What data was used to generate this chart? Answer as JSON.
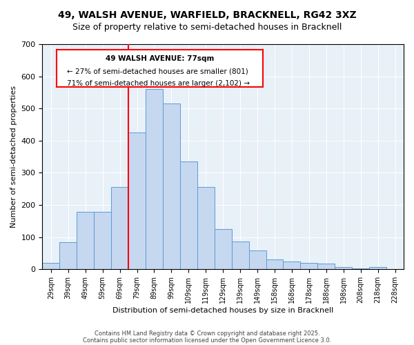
{
  "title": "49, WALSH AVENUE, WARFIELD, BRACKNELL, RG42 3XZ",
  "subtitle": "Size of property relative to semi-detached houses in Bracknell",
  "xlabel": "Distribution of semi-detached houses by size in Bracknell",
  "ylabel": "Number of semi-detached properties",
  "bin_labels": [
    "29sqm",
    "39sqm",
    "49sqm",
    "59sqm",
    "69sqm",
    "79sqm",
    "89sqm",
    "99sqm",
    "109sqm",
    "119sqm",
    "129sqm",
    "139sqm",
    "149sqm",
    "158sqm",
    "168sqm",
    "178sqm",
    "188sqm",
    "198sqm",
    "208sqm",
    "218sqm",
    "228sqm"
  ],
  "bar_values": [
    20,
    85,
    178,
    178,
    255,
    425,
    560,
    515,
    335,
    255,
    125,
    87,
    58,
    30,
    25,
    20,
    18,
    7,
    3,
    7,
    0
  ],
  "bar_color": "#c5d8f0",
  "bar_edge_color": "#5b9bd5",
  "property_size": 77,
  "vline_x": 4.5,
  "annotation_title": "49 WALSH AVENUE: 77sqm",
  "annotation_line1": "← 27% of semi-detached houses are smaller (801)",
  "annotation_line2": "71% of semi-detached houses are larger (2,102) →",
  "footer1": "Contains HM Land Registry data © Crown copyright and database right 2025.",
  "footer2": "Contains public sector information licensed under the Open Government Licence 3.0.",
  "ylim": [
    0,
    700
  ],
  "yticks": [
    0,
    100,
    200,
    300,
    400,
    500,
    600,
    700
  ],
  "bg_color": "#e8f0f8",
  "fig_bg_color": "#ffffff"
}
